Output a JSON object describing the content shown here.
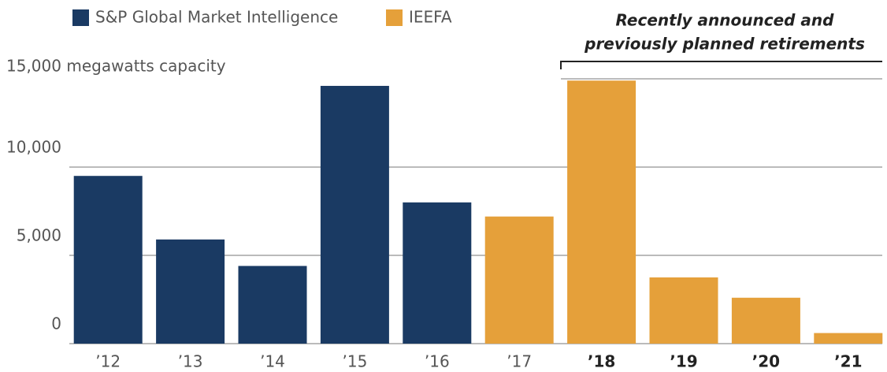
{
  "chart_data": {
    "type": "bar",
    "annotation": [
      "Recently announced and",
      "previously planned retirements"
    ],
    "categories": [
      "’12",
      "’13",
      "’14",
      "’15",
      "’16",
      "’17",
      "’18",
      "’19",
      "’20",
      "’21"
    ],
    "series": [
      {
        "name": "S&P Global Market Intelligence",
        "color": "#1a3a63",
        "values": [
          9500,
          5900,
          4400,
          14600,
          8000,
          null,
          null,
          null,
          null,
          null
        ]
      },
      {
        "name": "IEEFA",
        "color": "#e5a03a",
        "values": [
          null,
          null,
          null,
          null,
          null,
          7200,
          14900,
          3750,
          2600,
          600
        ]
      }
    ],
    "ylim": [
      0,
      15000
    ],
    "yticks": [
      0,
      {
        "value": 5000,
        "label": "5,000"
      },
      {
        "value": 10000,
        "label": "10,000"
      },
      {
        "value": 15000,
        "label": "15,000 megawatts capacity"
      }
    ],
    "grid": true
  }
}
